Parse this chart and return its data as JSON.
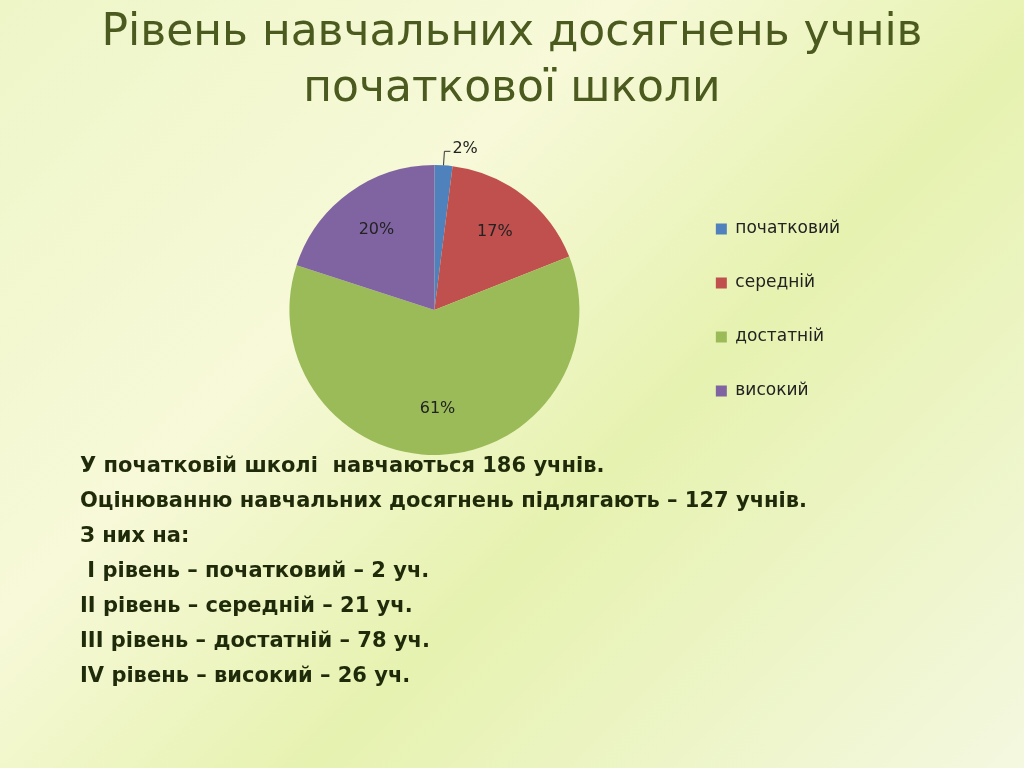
{
  "chart_data": {
    "type": "pie",
    "title": "Рівень навчальних досягнень учнів початкової школи",
    "categories": [
      "початковий",
      "середній",
      "достатній",
      "високий"
    ],
    "values": [
      2,
      17,
      61,
      20
    ],
    "value_labels": [
      "2%",
      "17%",
      "61%",
      "20%"
    ],
    "colors": [
      "#4f81bd",
      "#c0504d",
      "#9bbb59",
      "#8064a2"
    ],
    "legend": "right",
    "annotations": [
      "У початковій школі  навчаються 186 учнів.",
      "Оцінюванню навчальних досягнень підлягають – 127 учнів.",
      "З них на:",
      " І рівень – початковий – 2 уч.",
      "ІІ рівень – середній – 21 уч.",
      "ІІІ рівень – достатній – 78 уч.",
      "ІV рівень – високий – 26 уч."
    ]
  }
}
